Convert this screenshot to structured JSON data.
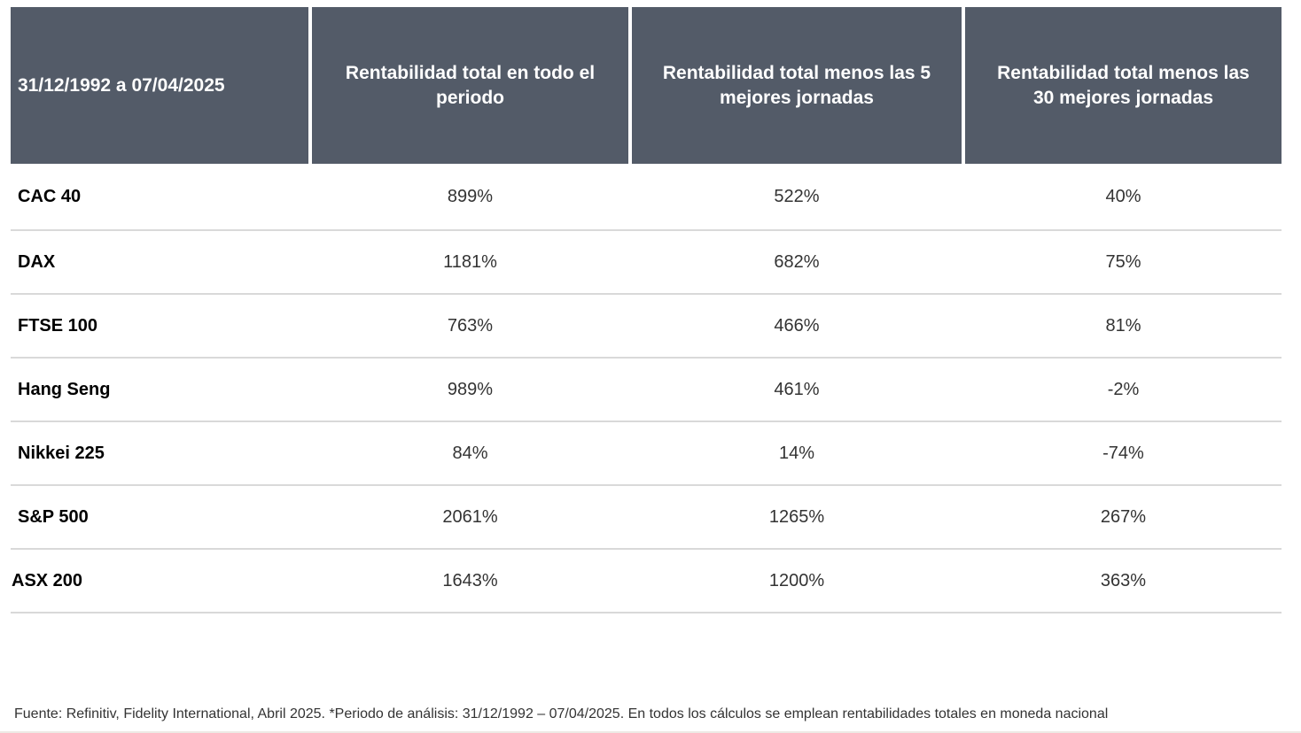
{
  "table": {
    "header": {
      "period_label": "31/12/1992 a 07/04/2025",
      "columns": [
        "Rentabilidad total en todo el periodo",
        "Rentabilidad total menos las 5 mejores jornadas",
        "Rentabilidad total menos las 30 mejores jornadas"
      ]
    },
    "rows": [
      {
        "index": "CAC 40",
        "total": "899%",
        "minus5": "522%",
        "minus30": "40%"
      },
      {
        "index": "DAX",
        "total": "1181%",
        "minus5": "682%",
        "minus30": "75%"
      },
      {
        "index": "FTSE 100",
        "total": "763%",
        "minus5": "466%",
        "minus30": "81%"
      },
      {
        "index": "Hang Seng",
        "total": "989%",
        "minus5": "461%",
        "minus30": "-2%"
      },
      {
        "index": "Nikkei 225",
        "total": "84%",
        "minus5": "14%",
        "minus30": "-74%"
      },
      {
        "index": "S&P 500",
        "total": "2061%",
        "minus5": "1265%",
        "minus30": "267%"
      },
      {
        "index": "ASX 200",
        "total": "1643%",
        "minus5": "1200%",
        "minus30": "363%"
      }
    ]
  },
  "footer": {
    "source_note": "Fuente: Refinitiv, Fidelity International, Abril 2025. *Periodo de análisis: 31/12/1992 – 07/04/2025. En todos los cálculos se emplean rentabilidades totales en moneda nacional"
  },
  "colors": {
    "header_bg": "#535B68",
    "header_text": "#FFFFFF",
    "row_divider": "#D9D9D9",
    "bottom_rule": "#EDEAE5",
    "label_text": "#000000",
    "value_text": "#333333"
  },
  "chart_data": {
    "type": "table",
    "title": "31/12/1992 a 07/04/2025",
    "unit": "%",
    "columns": [
      "31/12/1992 a 07/04/2025",
      "Rentabilidad total en todo el periodo",
      "Rentabilidad total menos las 5 mejores jornadas",
      "Rentabilidad total menos las 30 mejores jornadas"
    ],
    "rows": [
      [
        "CAC 40",
        899,
        522,
        40
      ],
      [
        "DAX",
        1181,
        682,
        75
      ],
      [
        "FTSE 100",
        763,
        466,
        81
      ],
      [
        "Hang Seng",
        989,
        461,
        -2
      ],
      [
        "Nikkei 225",
        84,
        14,
        -74
      ],
      [
        "S&P 500",
        2061,
        1265,
        267
      ],
      [
        "ASX 200",
        1643,
        1200,
        363
      ]
    ]
  }
}
